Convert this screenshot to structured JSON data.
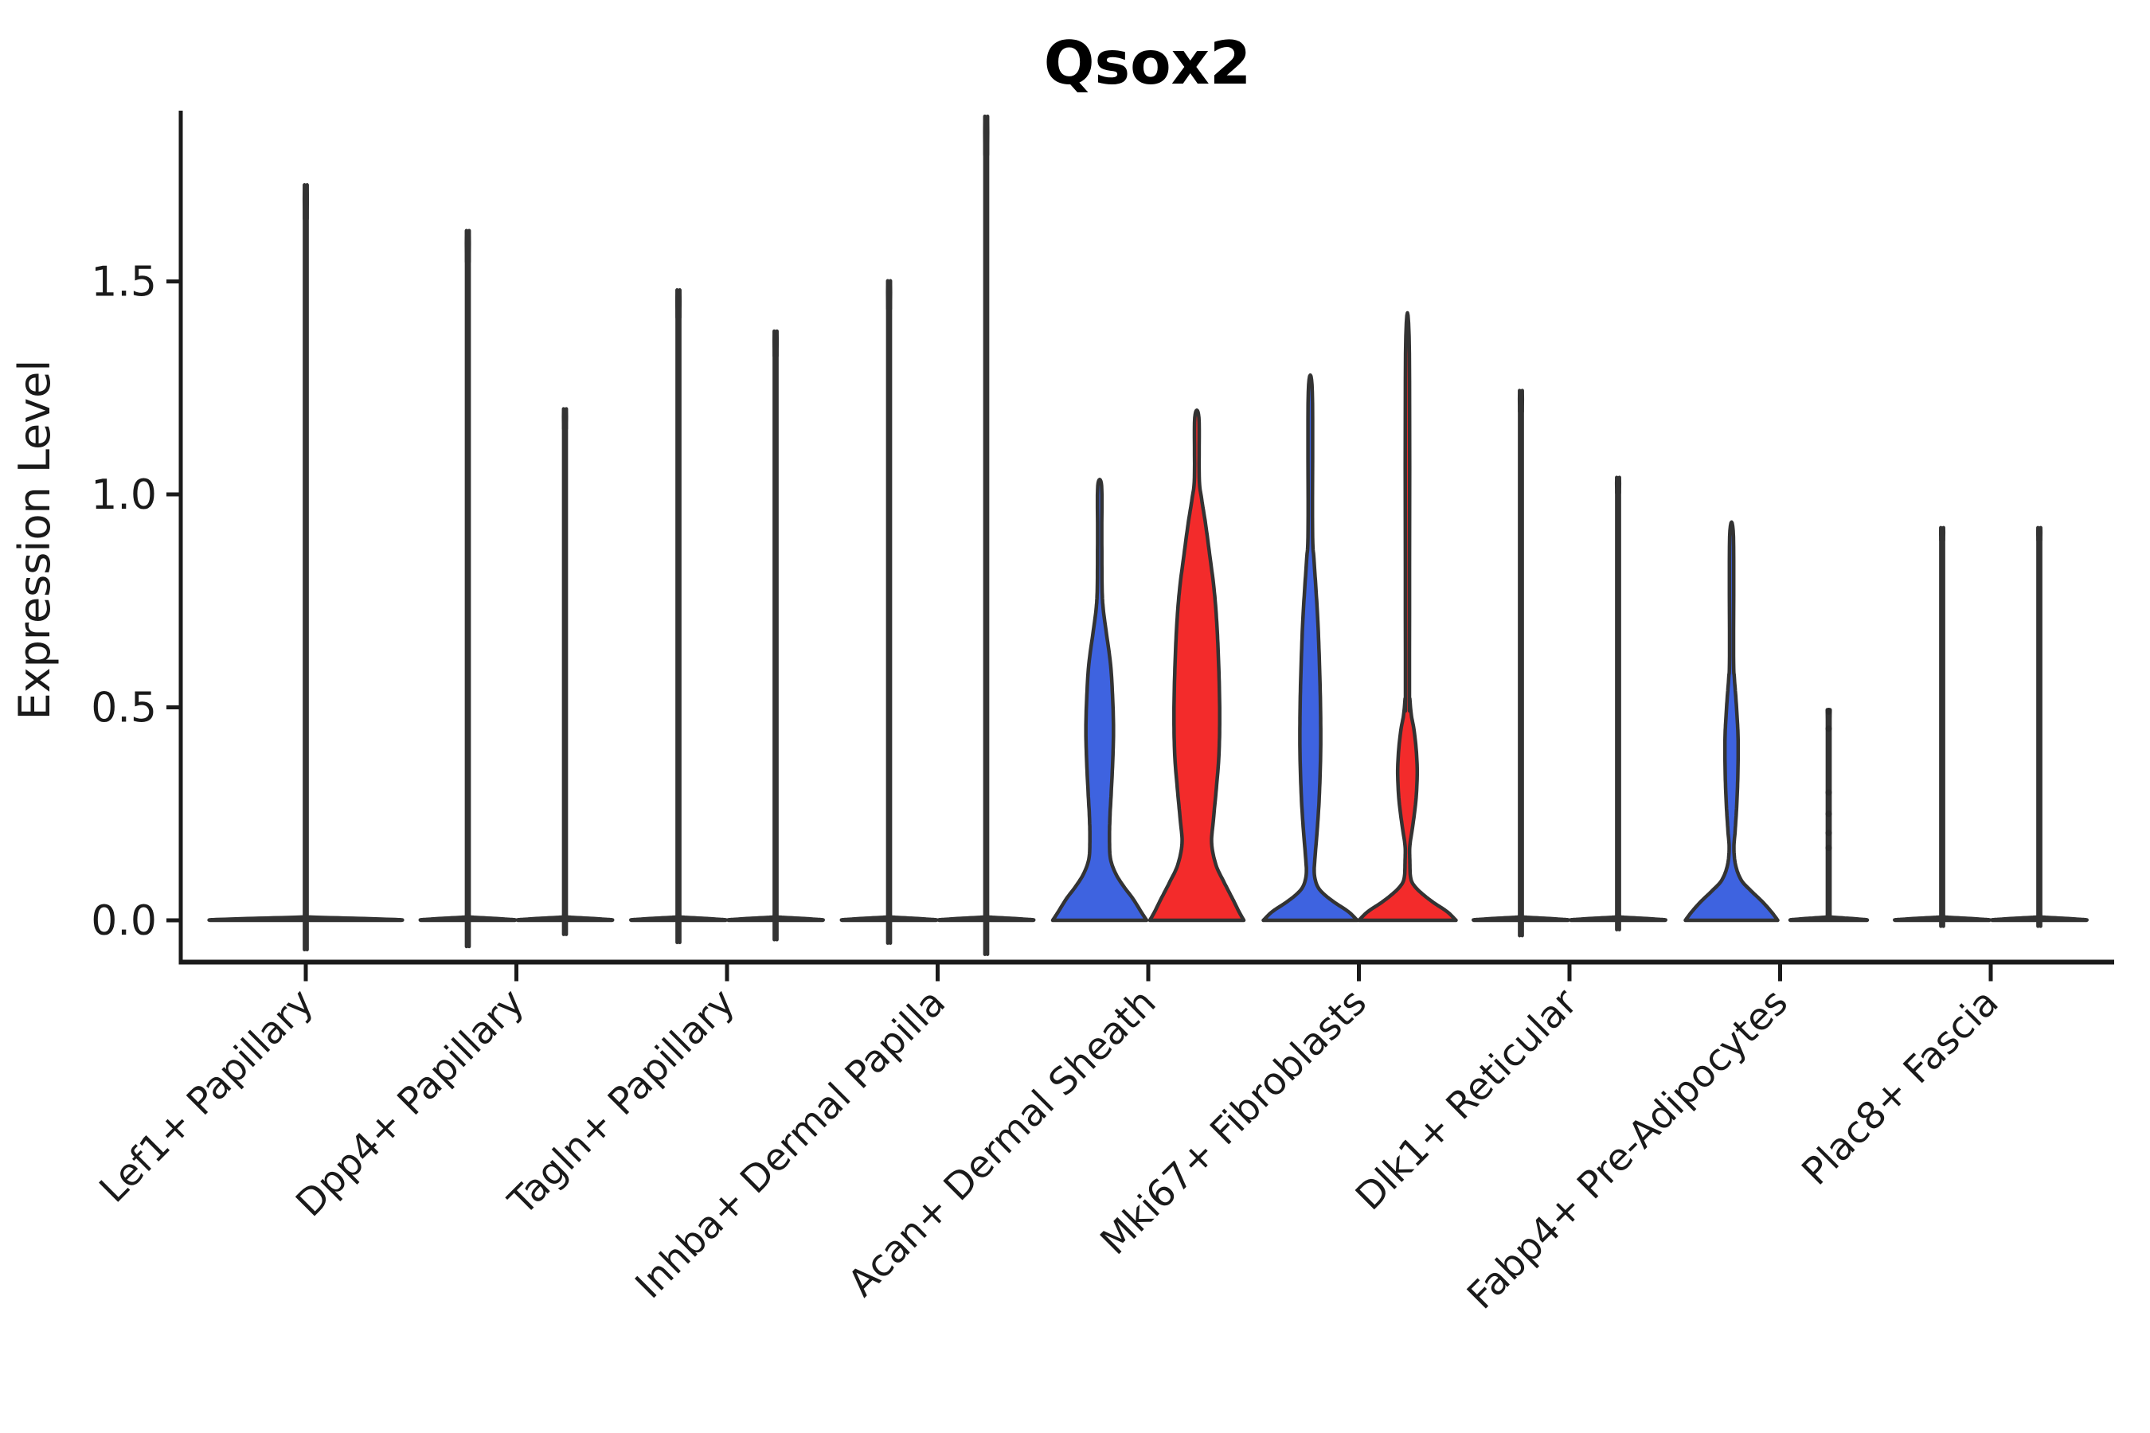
{
  "title": "Qsox2",
  "chart_data": {
    "type": "violin",
    "title": "Qsox2",
    "xlabel": "",
    "ylabel": "Expression Level",
    "ylim": [
      -0.1,
      1.9
    ],
    "yticks": [
      0.0,
      0.5,
      1.0,
      1.5
    ],
    "ytick_labels": [
      "0.0",
      "0.5",
      "1.0",
      "1.5"
    ],
    "grid": false,
    "legend": "none",
    "categories": [
      "Lef1+ Papillary",
      "Dpp4+ Papillary",
      "Tagln+ Papillary",
      "Inhba+ Dermal Papilla",
      "Acan+ Dermal Sheath",
      "Mki67+ Fibroblasts",
      "Dlk1+ Reticular",
      "Fabp4+ Pre-Adipocytes",
      "Plac8+ Fascia"
    ],
    "colors": {
      "blue": "#3E63E0",
      "red": "#F32B2B",
      "white": "#FFFFFF",
      "outline": "#333333",
      "axis": "#1a1a1a"
    },
    "violins": [
      {
        "category": "Lef1+ Papillary",
        "side": "single",
        "fill": "white",
        "max": 1.64,
        "halfwidth": 120
      },
      {
        "category": "Dpp4+ Papillary",
        "side": "left",
        "fill": "white",
        "max": 1.54,
        "halfwidth": 59
      },
      {
        "category": "Dpp4+ Papillary",
        "side": "right",
        "fill": "white",
        "max": 1.15,
        "halfwidth": 59
      },
      {
        "category": "Tagln+ Papillary",
        "side": "left",
        "fill": "white",
        "max": 1.41,
        "halfwidth": 59
      },
      {
        "category": "Tagln+ Papillary",
        "side": "right",
        "fill": "white",
        "max": 1.32,
        "halfwidth": 59
      },
      {
        "category": "Inhba+ Dermal Papilla",
        "side": "left",
        "fill": "white",
        "max": 1.43,
        "halfwidth": 59
      },
      {
        "category": "Inhba+ Dermal Papilla",
        "side": "right",
        "fill": "white",
        "max": 1.79,
        "halfwidth": 59
      },
      {
        "category": "Acan+ Dermal Sheath",
        "side": "left",
        "fill": "blue",
        "max": 1.02,
        "profile": [
          [
            0,
            59
          ],
          [
            0.02,
            52
          ],
          [
            0.05,
            42
          ],
          [
            0.08,
            30
          ],
          [
            0.11,
            20
          ],
          [
            0.145,
            13.5
          ],
          [
            0.19,
            12.3
          ],
          [
            0.24,
            12.8
          ],
          [
            0.3,
            14.5
          ],
          [
            0.38,
            16.5
          ],
          [
            0.45,
            17.3
          ],
          [
            0.52,
            16.3
          ],
          [
            0.6,
            13.7
          ],
          [
            0.68,
            8
          ],
          [
            0.73,
            4.5
          ],
          [
            0.78,
            3
          ],
          [
            0.9,
            2.6
          ],
          [
            1.02,
            2.4
          ]
        ]
      },
      {
        "category": "Acan+ Dermal Sheath",
        "side": "right",
        "fill": "red",
        "max": 1.18,
        "profile": [
          [
            0,
            59
          ],
          [
            0.02,
            53
          ],
          [
            0.05,
            45
          ],
          [
            0.09,
            34
          ],
          [
            0.13,
            24
          ],
          [
            0.18,
            18.6
          ],
          [
            0.23,
            20.5
          ],
          [
            0.3,
            24
          ],
          [
            0.38,
            27.5
          ],
          [
            0.46,
            28.7
          ],
          [
            0.54,
            28.3
          ],
          [
            0.62,
            27
          ],
          [
            0.7,
            25
          ],
          [
            0.78,
            21.5
          ],
          [
            0.86,
            16
          ],
          [
            0.93,
            11
          ],
          [
            0.99,
            6
          ],
          [
            1.04,
            3
          ],
          [
            1.18,
            2.6
          ]
        ]
      },
      {
        "category": "Mki67+ Fibroblasts",
        "side": "left",
        "fill": "blue",
        "max": 1.24,
        "profile": [
          [
            0,
            59
          ],
          [
            0.02,
            48
          ],
          [
            0.04,
            32
          ],
          [
            0.06,
            18
          ],
          [
            0.08,
            9
          ],
          [
            0.11,
            5
          ],
          [
            0.15,
            6
          ],
          [
            0.22,
            9
          ],
          [
            0.3,
            11.5
          ],
          [
            0.4,
            13
          ],
          [
            0.5,
            12.8
          ],
          [
            0.6,
            11.5
          ],
          [
            0.7,
            9.5
          ],
          [
            0.78,
            7
          ],
          [
            0.85,
            4.5
          ],
          [
            0.92,
            2.8
          ],
          [
            1.24,
            2.5
          ]
        ]
      },
      {
        "category": "Mki67+ Fibroblasts",
        "side": "right",
        "fill": "red",
        "max": 1.33,
        "profile": [
          [
            0,
            61
          ],
          [
            0.02,
            50
          ],
          [
            0.04,
            34
          ],
          [
            0.06,
            20
          ],
          [
            0.08,
            9
          ],
          [
            0.1,
            4
          ],
          [
            0.14,
            3
          ],
          [
            0.175,
            3
          ],
          [
            0.22,
            6.5
          ],
          [
            0.28,
            10.5
          ],
          [
            0.345,
            12.3
          ],
          [
            0.4,
            11
          ],
          [
            0.45,
            8
          ],
          [
            0.48,
            5
          ],
          [
            0.52,
            3
          ],
          [
            0.56,
            2.5
          ],
          [
            1.33,
            2.4
          ]
        ]
      },
      {
        "category": "Dlk1+ Reticular",
        "side": "left",
        "fill": "white",
        "max": 1.19,
        "halfwidth": 59
      },
      {
        "category": "Dlk1+ Reticular",
        "side": "right",
        "fill": "white",
        "max": 1.0,
        "halfwidth": 59
      },
      {
        "category": "Fabp4+ Pre-Adipocytes",
        "side": "left",
        "fill": "blue",
        "max": 0.9,
        "profile": [
          [
            0,
            58
          ],
          [
            0.02,
            50
          ],
          [
            0.045,
            38
          ],
          [
            0.07,
            24
          ],
          [
            0.095,
            12
          ],
          [
            0.13,
            5
          ],
          [
            0.17,
            3
          ],
          [
            0.21,
            4.5
          ],
          [
            0.27,
            6.5
          ],
          [
            0.34,
            7.9
          ],
          [
            0.42,
            8.3
          ],
          [
            0.47,
            7.2
          ],
          [
            0.52,
            5.5
          ],
          [
            0.57,
            3.5
          ],
          [
            0.62,
            2.5
          ],
          [
            0.9,
            2.4
          ]
        ]
      },
      {
        "category": "Fabp4+ Pre-Adipocytes",
        "side": "right",
        "fill": "white",
        "max": 0.49,
        "halfwidth": 48,
        "points": [
          0.49,
          0.45,
          0.3,
          0.25,
          0.205,
          0.17
        ]
      },
      {
        "category": "Plac8+ Fascia",
        "side": "left",
        "fill": "white",
        "max": 0.89,
        "halfwidth": 59
      },
      {
        "category": "Plac8+ Fascia",
        "side": "right",
        "fill": "white",
        "max": 0.89,
        "halfwidth": 59
      }
    ],
    "peaks_by_category": {
      "Lef1+ Papillary": [
        1.64
      ],
      "Dpp4+ Papillary": [
        1.54,
        1.15
      ],
      "Tagln+ Papillary": [
        1.41,
        1.32
      ],
      "Inhba+ Dermal Papilla": [
        1.43,
        1.79
      ],
      "Acan+ Dermal Sheath": [
        1.02,
        1.18
      ],
      "Mki67+ Fibroblasts": [
        1.24,
        1.33
      ],
      "Dlk1+ Reticular": [
        1.19,
        1.0
      ],
      "Fabp4+ Pre-Adipocytes": [
        0.9,
        0.49
      ],
      "Plac8+ Fascia": [
        0.89,
        0.89
      ]
    }
  }
}
